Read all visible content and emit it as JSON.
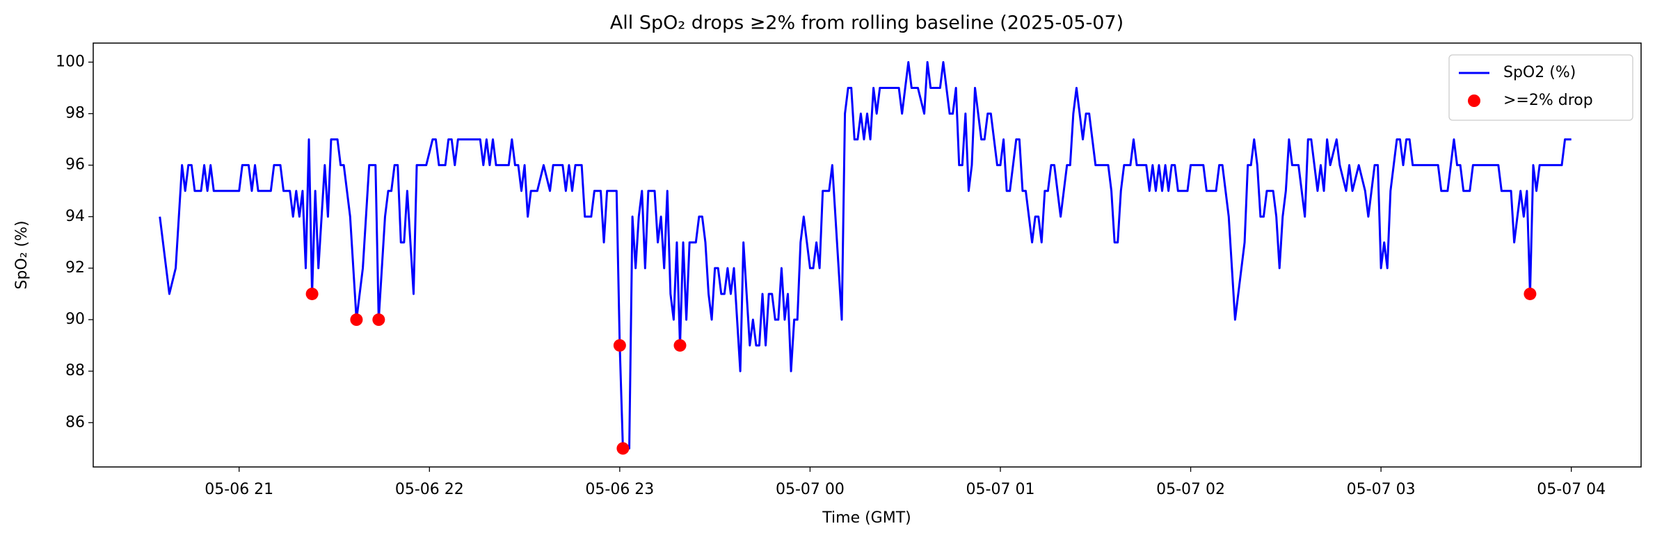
{
  "chart_data": {
    "type": "line",
    "title": "All SpO₂ drops ≥2% from rolling baseline (2025-05-07)",
    "x_label": "Time (GMT)",
    "y_label": "SpO₂ (%)",
    "xlim": [
      "2025-05-06T20:14",
      "2025-05-07T04:22"
    ],
    "xticks": [
      {
        "value": "2025-05-06T21:00",
        "label": "05-06 21"
      },
      {
        "value": "2025-05-06T22:00",
        "label": "05-06 22"
      },
      {
        "value": "2025-05-06T23:00",
        "label": "05-06 23"
      },
      {
        "value": "2025-05-07T00:00",
        "label": "05-07 00"
      },
      {
        "value": "2025-05-07T01:00",
        "label": "05-07 01"
      },
      {
        "value": "2025-05-07T02:00",
        "label": "05-07 02"
      },
      {
        "value": "2025-05-07T03:00",
        "label": "05-07 03"
      },
      {
        "value": "2025-05-07T04:00",
        "label": "05-07 04"
      }
    ],
    "ylim": [
      84.28,
      100.74
    ],
    "yticks": [
      86,
      88,
      90,
      92,
      94,
      96,
      98,
      100
    ],
    "legend": "upper right",
    "series": [
      {
        "name": "SpO2 (%)",
        "type": "line",
        "color": "#0000ff",
        "x": [
          "2025-05-06T20:35",
          "2025-05-06T20:38",
          "2025-05-06T20:40",
          "2025-05-06T20:42",
          "2025-05-06T20:43",
          "2025-05-06T20:44",
          "2025-05-06T20:45",
          "2025-05-06T20:46",
          "2025-05-06T20:48",
          "2025-05-06T20:49",
          "2025-05-06T20:50",
          "2025-05-06T20:51",
          "2025-05-06T20:52",
          "2025-05-06T21:00",
          "2025-05-06T21:01",
          "2025-05-06T21:03",
          "2025-05-06T21:04",
          "2025-05-06T21:05",
          "2025-05-06T21:06",
          "2025-05-06T21:10",
          "2025-05-06T21:11",
          "2025-05-06T21:13",
          "2025-05-06T21:14",
          "2025-05-06T21:16",
          "2025-05-06T21:17",
          "2025-05-06T21:18",
          "2025-05-06T21:19",
          "2025-05-06T21:20",
          "2025-05-06T21:21",
          "2025-05-06T21:22",
          "2025-05-06T21:23",
          "2025-05-06T21:24",
          "2025-05-06T21:25",
          "2025-05-06T21:27",
          "2025-05-06T21:28",
          "2025-05-06T21:29",
          "2025-05-06T21:31",
          "2025-05-06T21:32",
          "2025-05-06T21:33",
          "2025-05-06T21:35",
          "2025-05-06T21:37",
          "2025-05-06T21:39",
          "2025-05-06T21:41",
          "2025-05-06T21:43",
          "2025-05-06T21:44",
          "2025-05-06T21:46",
          "2025-05-06T21:47",
          "2025-05-06T21:48",
          "2025-05-06T21:49",
          "2025-05-06T21:50",
          "2025-05-06T21:51",
          "2025-05-06T21:52",
          "2025-05-06T21:53",
          "2025-05-06T21:55",
          "2025-05-06T21:56",
          "2025-05-06T21:59",
          "2025-05-06T22:01",
          "2025-05-06T22:02",
          "2025-05-06T22:03",
          "2025-05-06T22:05",
          "2025-05-06T22:06",
          "2025-05-06T22:07",
          "2025-05-06T22:08",
          "2025-05-06T22:09",
          "2025-05-06T22:16",
          "2025-05-06T22:17",
          "2025-05-06T22:18",
          "2025-05-06T22:19",
          "2025-05-06T22:20",
          "2025-05-06T22:21",
          "2025-05-06T22:25",
          "2025-05-06T22:26",
          "2025-05-06T22:27",
          "2025-05-06T22:28",
          "2025-05-06T22:29",
          "2025-05-06T22:30",
          "2025-05-06T22:31",
          "2025-05-06T22:32",
          "2025-05-06T22:34",
          "2025-05-06T22:36",
          "2025-05-06T22:38",
          "2025-05-06T22:39",
          "2025-05-06T22:42",
          "2025-05-06T22:43",
          "2025-05-06T22:44",
          "2025-05-06T22:45",
          "2025-05-06T22:46",
          "2025-05-06T22:48",
          "2025-05-06T22:49",
          "2025-05-06T22:51",
          "2025-05-06T22:52",
          "2025-05-06T22:54",
          "2025-05-06T22:55",
          "2025-05-06T22:56",
          "2025-05-06T22:59",
          "2025-05-06T23:00",
          "2025-05-06T23:01",
          "2025-05-06T23:03",
          "2025-05-06T23:04",
          "2025-05-06T23:05",
          "2025-05-06T23:06",
          "2025-05-06T23:07",
          "2025-05-06T23:08",
          "2025-05-06T23:09",
          "2025-05-06T23:11",
          "2025-05-06T23:12",
          "2025-05-06T23:13",
          "2025-05-06T23:14",
          "2025-05-06T23:15",
          "2025-05-06T23:16",
          "2025-05-06T23:17",
          "2025-05-06T23:18",
          "2025-05-06T23:19",
          "2025-05-06T23:20",
          "2025-05-06T23:21",
          "2025-05-06T23:22",
          "2025-05-06T23:24",
          "2025-05-06T23:25",
          "2025-05-06T23:26",
          "2025-05-06T23:27",
          "2025-05-06T23:28",
          "2025-05-06T23:29",
          "2025-05-06T23:30",
          "2025-05-06T23:31",
          "2025-05-06T23:32",
          "2025-05-06T23:33",
          "2025-05-06T23:34",
          "2025-05-06T23:35",
          "2025-05-06T23:36",
          "2025-05-06T23:37",
          "2025-05-06T23:38",
          "2025-05-06T23:39",
          "2025-05-06T23:40",
          "2025-05-06T23:41",
          "2025-05-06T23:42",
          "2025-05-06T23:43",
          "2025-05-06T23:44",
          "2025-05-06T23:45",
          "2025-05-06T23:46",
          "2025-05-06T23:47",
          "2025-05-06T23:48",
          "2025-05-06T23:49",
          "2025-05-06T23:50",
          "2025-05-06T23:51",
          "2025-05-06T23:52",
          "2025-05-06T23:53",
          "2025-05-06T23:54",
          "2025-05-06T23:55",
          "2025-05-06T23:56",
          "2025-05-06T23:57",
          "2025-05-06T23:58",
          "2025-05-06T23:59",
          "2025-05-07T00:00",
          "2025-05-07T00:01",
          "2025-05-07T00:02",
          "2025-05-07T00:03",
          "2025-05-07T00:04",
          "2025-05-07T00:06",
          "2025-05-07T00:07",
          "2025-05-07T00:08",
          "2025-05-07T00:10",
          "2025-05-07T00:11",
          "2025-05-07T00:12",
          "2025-05-07T00:13",
          "2025-05-07T00:14",
          "2025-05-07T00:15",
          "2025-05-07T00:16",
          "2025-05-07T00:17",
          "2025-05-07T00:18",
          "2025-05-07T00:19",
          "2025-05-07T00:20",
          "2025-05-07T00:21",
          "2025-05-07T00:22",
          "2025-05-07T00:28",
          "2025-05-07T00:29",
          "2025-05-07T00:30",
          "2025-05-07T00:31",
          "2025-05-07T00:32",
          "2025-05-07T00:34",
          "2025-05-07T00:36",
          "2025-05-07T00:37",
          "2025-05-07T00:38",
          "2025-05-07T00:41",
          "2025-05-07T00:42",
          "2025-05-07T00:43",
          "2025-05-07T00:44",
          "2025-05-07T00:45",
          "2025-05-07T00:46",
          "2025-05-07T00:47",
          "2025-05-07T00:48",
          "2025-05-07T00:49",
          "2025-05-07T00:50",
          "2025-05-07T00:51",
          "2025-05-07T00:52",
          "2025-05-07T00:53",
          "2025-05-07T00:54",
          "2025-05-07T00:55",
          "2025-05-07T00:56",
          "2025-05-07T00:57",
          "2025-05-07T00:58",
          "2025-05-07T00:59",
          "2025-05-07T01:00",
          "2025-05-07T01:01",
          "2025-05-07T01:02",
          "2025-05-07T01:03",
          "2025-05-07T01:04",
          "2025-05-07T01:05",
          "2025-05-07T01:06",
          "2025-05-07T01:07",
          "2025-05-07T01:08",
          "2025-05-07T01:09",
          "2025-05-07T01:10",
          "2025-05-07T01:11",
          "2025-05-07T01:12",
          "2025-05-07T01:13",
          "2025-05-07T01:14",
          "2025-05-07T01:15",
          "2025-05-07T01:16",
          "2025-05-07T01:17",
          "2025-05-07T01:18",
          "2025-05-07T01:19",
          "2025-05-07T01:20",
          "2025-05-07T01:21",
          "2025-05-07T01:22",
          "2025-05-07T01:23",
          "2025-05-07T01:24",
          "2025-05-07T01:25",
          "2025-05-07T01:26",
          "2025-05-07T01:27",
          "2025-05-07T01:28",
          "2025-05-07T01:29",
          "2025-05-07T01:30",
          "2025-05-07T01:34",
          "2025-05-07T01:35",
          "2025-05-07T01:36",
          "2025-05-07T01:37",
          "2025-05-07T01:38",
          "2025-05-07T01:39",
          "2025-05-07T01:41",
          "2025-05-07T01:42",
          "2025-05-07T01:43",
          "2025-05-07T01:46",
          "2025-05-07T01:47",
          "2025-05-07T01:48",
          "2025-05-07T01:49",
          "2025-05-07T01:50",
          "2025-05-07T01:51",
          "2025-05-07T01:52",
          "2025-05-07T01:53",
          "2025-05-07T01:54",
          "2025-05-07T01:55",
          "2025-05-07T01:56",
          "2025-05-07T01:59",
          "2025-05-07T02:00",
          "2025-05-07T02:04",
          "2025-05-07T02:05",
          "2025-05-07T02:08",
          "2025-05-07T02:09",
          "2025-05-07T02:10",
          "2025-05-07T02:12",
          "2025-05-07T02:14",
          "2025-05-07T02:17",
          "2025-05-07T02:18",
          "2025-05-07T02:19",
          "2025-05-07T02:20",
          "2025-05-07T02:21",
          "2025-05-07T02:22",
          "2025-05-07T02:23",
          "2025-05-07T02:24",
          "2025-05-07T02:26",
          "2025-05-07T02:27",
          "2025-05-07T02:28",
          "2025-05-07T02:29",
          "2025-05-07T02:30",
          "2025-05-07T02:31",
          "2025-05-07T02:32",
          "2025-05-07T02:34",
          "2025-05-07T02:36",
          "2025-05-07T02:37",
          "2025-05-07T02:38",
          "2025-05-07T02:39",
          "2025-05-07T02:40",
          "2025-05-07T02:41",
          "2025-05-07T02:42",
          "2025-05-07T02:43",
          "2025-05-07T02:44",
          "2025-05-07T02:46",
          "2025-05-07T02:47",
          "2025-05-07T02:49",
          "2025-05-07T02:50",
          "2025-05-07T02:51",
          "2025-05-07T02:53",
          "2025-05-07T02:55",
          "2025-05-07T02:56",
          "2025-05-07T02:57",
          "2025-05-07T02:58",
          "2025-05-07T02:59",
          "2025-05-07T03:00",
          "2025-05-07T03:01",
          "2025-05-07T03:02",
          "2025-05-07T03:03",
          "2025-05-07T03:04",
          "2025-05-07T03:05",
          "2025-05-07T03:06",
          "2025-05-07T03:07",
          "2025-05-07T03:08",
          "2025-05-07T03:09",
          "2025-05-07T03:10",
          "2025-05-07T03:18",
          "2025-05-07T03:19",
          "2025-05-07T03:21",
          "2025-05-07T03:22",
          "2025-05-07T03:23",
          "2025-05-07T03:24",
          "2025-05-07T03:25",
          "2025-05-07T03:26",
          "2025-05-07T03:28",
          "2025-05-07T03:29",
          "2025-05-07T03:37",
          "2025-05-07T03:38",
          "2025-05-07T03:41",
          "2025-05-07T03:42",
          "2025-05-07T03:44",
          "2025-05-07T03:45",
          "2025-05-07T03:46",
          "2025-05-07T03:47",
          "2025-05-07T03:48",
          "2025-05-07T03:49",
          "2025-05-07T03:50",
          "2025-05-07T03:57",
          "2025-05-07T03:58",
          "2025-05-07T04:00"
        ],
        "values": [
          94,
          91,
          92,
          96,
          95,
          96,
          96,
          95,
          95,
          96,
          95,
          96,
          95,
          95,
          96,
          96,
          95,
          96,
          95,
          95,
          96,
          96,
          95,
          95,
          94,
          95,
          94,
          95,
          92,
          97,
          91,
          95,
          92,
          96,
          94,
          97,
          97,
          96,
          96,
          94,
          90,
          92,
          96,
          96,
          90,
          94,
          95,
          95,
          96,
          96,
          93,
          93,
          95,
          91,
          96,
          96,
          97,
          97,
          96,
          96,
          97,
          97,
          96,
          97,
          97,
          96,
          97,
          96,
          97,
          96,
          96,
          97,
          96,
          96,
          95,
          96,
          94,
          95,
          95,
          96,
          95,
          96,
          96,
          95,
          96,
          95,
          96,
          96,
          94,
          94,
          95,
          95,
          93,
          95,
          95,
          89,
          85,
          85,
          94,
          92,
          94,
          95,
          92,
          95,
          95,
          93,
          94,
          92,
          95,
          91,
          90,
          93,
          89,
          93,
          90,
          93,
          93,
          94,
          94,
          93,
          91,
          90,
          92,
          92,
          91,
          91,
          92,
          91,
          92,
          90,
          88,
          93,
          91,
          89,
          90,
          89,
          89,
          91,
          89,
          91,
          91,
          90,
          90,
          92,
          90,
          91,
          88,
          90,
          90,
          93,
          94,
          93,
          92,
          92,
          93,
          92,
          95,
          95,
          96,
          94,
          90,
          98,
          99,
          99,
          97,
          97,
          98,
          97,
          98,
          97,
          99,
          98,
          99,
          99,
          98,
          99,
          100,
          99,
          99,
          98,
          100,
          99,
          99,
          100,
          99,
          98,
          98,
          99,
          96,
          96,
          98,
          95,
          96,
          99,
          98,
          97,
          97,
          98,
          98,
          97,
          96,
          96,
          97,
          95,
          95,
          96,
          97,
          97,
          95,
          95,
          94,
          93,
          94,
          94,
          93,
          95,
          95,
          96,
          96,
          95,
          94,
          95,
          96,
          96,
          98,
          99,
          98,
          97,
          98,
          98,
          97,
          96,
          96,
          95,
          93,
          93,
          95,
          96,
          96,
          97,
          96,
          96,
          95,
          96,
          95,
          96,
          95,
          96,
          95,
          96,
          96,
          95,
          95,
          96,
          96,
          95,
          95,
          96,
          96,
          94,
          90,
          93,
          96,
          96,
          97,
          96,
          94,
          94,
          95,
          95,
          94,
          92,
          94,
          95,
          97,
          96,
          96,
          94,
          97,
          97,
          96,
          95,
          96,
          95,
          97,
          96,
          97,
          96,
          95,
          96,
          95,
          96,
          95,
          94,
          95,
          96,
          96,
          92,
          93,
          92,
          95,
          96,
          97,
          97,
          96,
          97,
          97,
          96,
          96,
          95,
          95,
          96,
          97,
          96,
          96,
          95,
          95,
          96,
          96,
          95,
          95,
          93,
          95,
          94,
          95,
          91,
          96,
          95,
          96,
          96,
          97,
          97
        ]
      },
      {
        "name": ">=2% drop",
        "type": "scatter",
        "color": "#ff0000",
        "x": [
          "2025-05-06T21:23",
          "2025-05-06T21:37",
          "2025-05-06T21:44",
          "2025-05-06T23:00",
          "2025-05-06T23:01",
          "2025-05-06T23:19",
          "2025-05-07T03:47"
        ],
        "values": [
          91,
          90,
          90,
          89,
          85,
          89,
          91
        ]
      }
    ]
  }
}
